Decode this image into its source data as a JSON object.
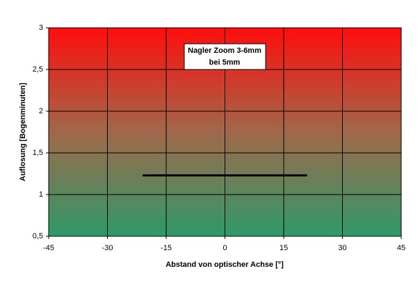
{
  "chart_data": {
    "type": "line",
    "xlabel": "Abstand von optischer Achse [°]",
    "ylabel": "Auflosung [Bogenminuten]",
    "annotation": [
      "Nagler Zoom 3-6mm",
      "bei 5mm"
    ],
    "x": [
      -21,
      21
    ],
    "values": [
      1.23,
      1.23
    ],
    "color": "#000000",
    "xlim": [
      -45,
      45
    ],
    "xticks": [
      -45,
      -30,
      -15,
      0,
      15,
      30,
      45
    ],
    "ylim": [
      0.5,
      3
    ],
    "yticks": [
      {
        "value": 0.5,
        "label": "0,5"
      },
      1,
      {
        "value": 1.5,
        "label": "1,5"
      },
      2,
      {
        "value": 2.5,
        "label": "2,5"
      },
      3
    ],
    "grid": true
  }
}
